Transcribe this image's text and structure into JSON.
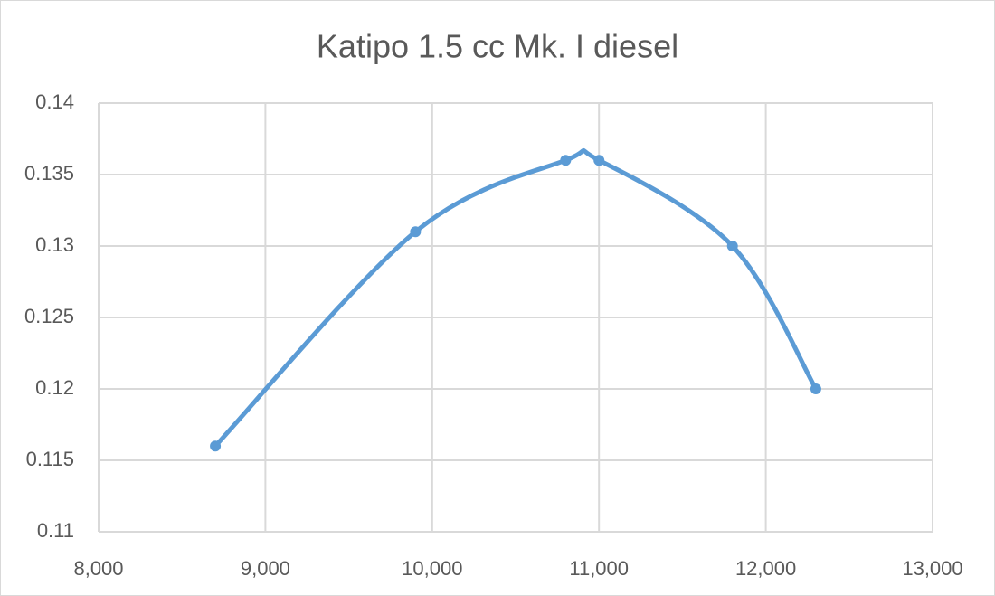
{
  "chart_data": {
    "type": "scatter-smooth",
    "title": "Katipo 1.5 cc Mk. I diesel",
    "x": [
      8700,
      9900,
      10800,
      11000,
      11800,
      12300
    ],
    "series": [
      {
        "color": "#5b9bd5",
        "values": [
          0.116,
          0.131,
          0.136,
          0.136,
          0.13,
          0.12
        ]
      }
    ],
    "xlim": [
      8000,
      13000
    ],
    "xticks": [
      {
        "value": 8000,
        "label": "8,000"
      },
      {
        "value": 9000,
        "label": "9,000"
      },
      {
        "value": 10000,
        "label": "10,000"
      },
      {
        "value": 11000,
        "label": "11,000"
      },
      {
        "value": 12000,
        "label": "12,000"
      },
      {
        "value": 13000,
        "label": "13,000"
      }
    ],
    "ylim": [
      0.11,
      0.14
    ],
    "yticks": [
      0.11,
      0.115,
      0.12,
      0.125,
      0.13,
      0.135,
      0.14
    ],
    "grid": true
  }
}
